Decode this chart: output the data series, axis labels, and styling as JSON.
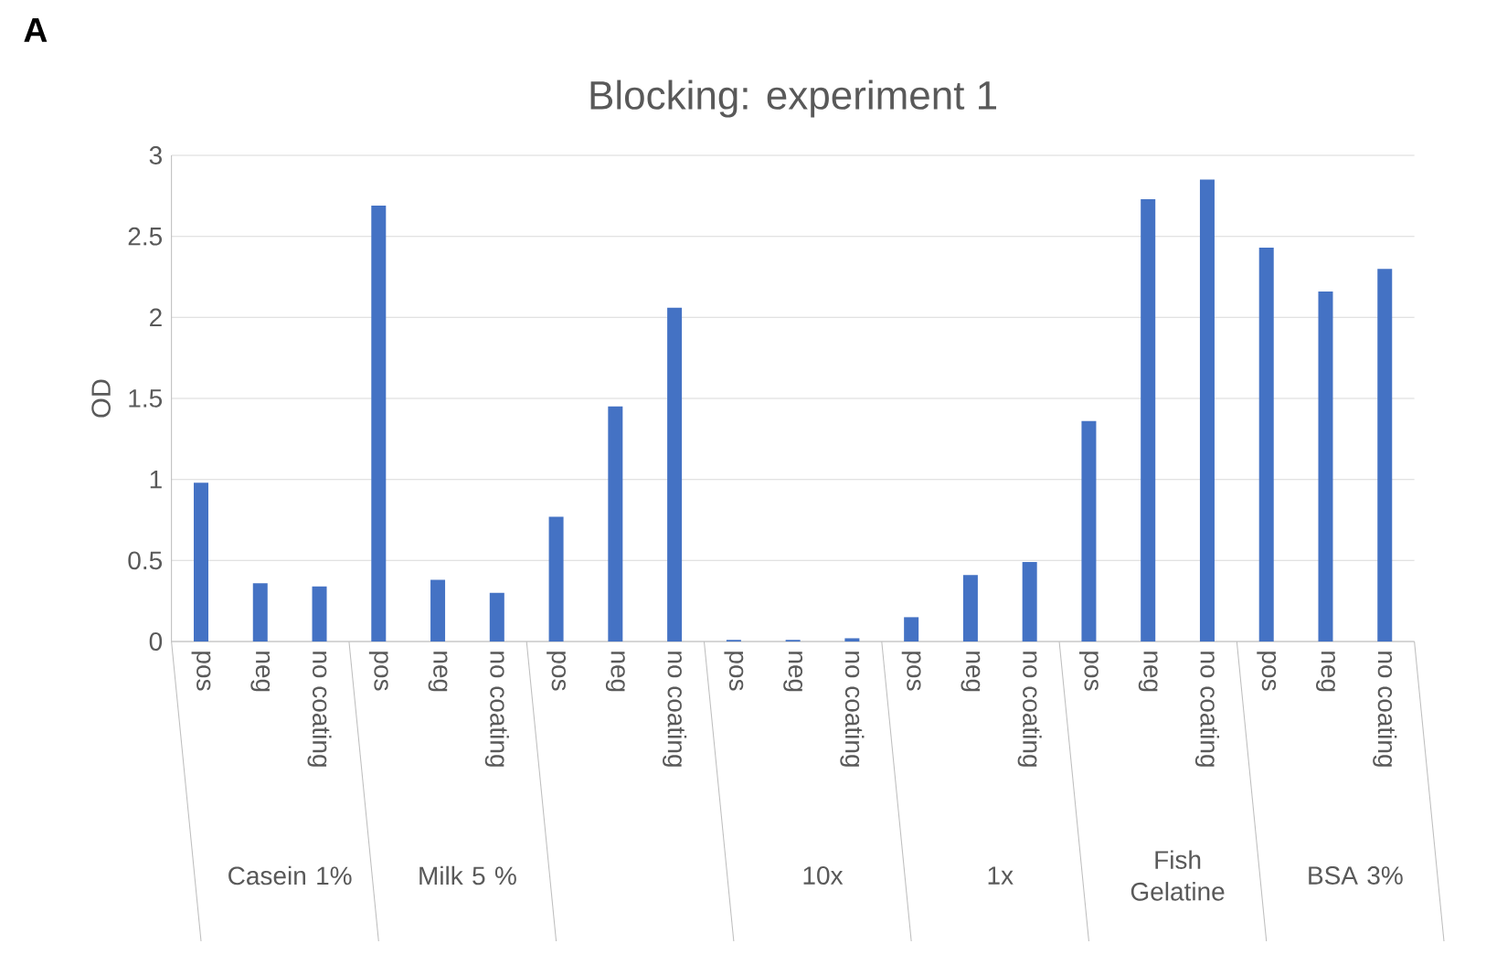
{
  "chart_data": {
    "type": "bar",
    "title": "Blocking: experiment 1",
    "ylabel": "OD",
    "categories": [
      "pos",
      "neg",
      "no coating",
      "pos",
      "neg",
      "no coating",
      "pos",
      "neg",
      "no coating",
      "pos",
      "neg",
      "no coating",
      "pos",
      "neg",
      "no coating",
      "pos",
      "neg",
      "no coating",
      "pos",
      "neg",
      "no coating"
    ],
    "values": [
      0.98,
      0.36,
      0.34,
      2.69,
      0.38,
      0.3,
      0.77,
      1.45,
      2.06,
      0.01,
      0.01,
      0.02,
      0.15,
      0.41,
      0.49,
      1.36,
      2.73,
      2.85,
      2.43,
      2.16,
      2.3
    ],
    "color": "#4472c4",
    "ylim": [
      0,
      3
    ],
    "yticks": [
      0,
      0.5,
      1,
      1.5,
      2,
      2.5,
      3
    ],
    "grid": "y",
    "annotations": [
      "A",
      "Casein 1%",
      "Milk 5 %",
      null,
      "10x",
      "1x",
      "Fish Gelatine",
      "BSA 3%"
    ]
  }
}
